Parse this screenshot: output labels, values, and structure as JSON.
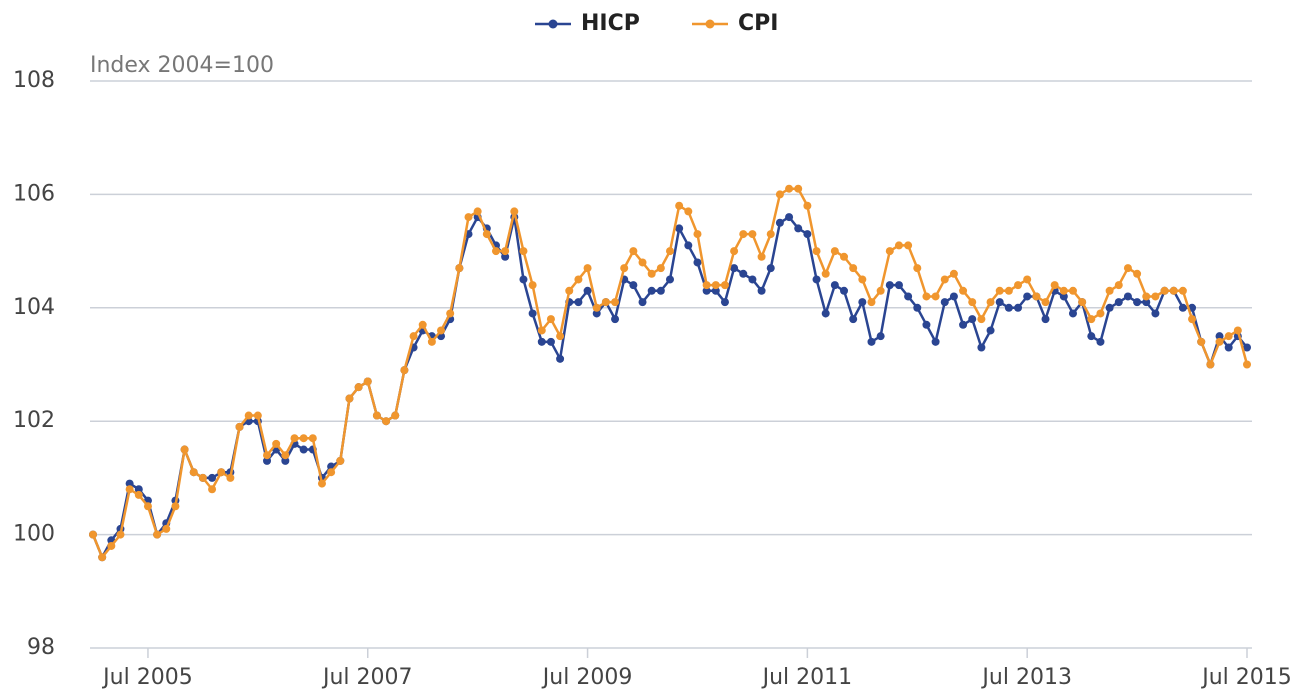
{
  "chart_data": {
    "type": "line",
    "y_label": "Index 2004=100",
    "categories": [
      null,
      null,
      null,
      null,
      null,
      null,
      "Jul 2005",
      null,
      null,
      null,
      null,
      null,
      null,
      null,
      null,
      null,
      null,
      null,
      null,
      null,
      null,
      null,
      null,
      null,
      null,
      null,
      null,
      null,
      null,
      null,
      "Jul 2007",
      null,
      null,
      null,
      null,
      null,
      null,
      null,
      null,
      null,
      null,
      null,
      null,
      null,
      null,
      null,
      null,
      null,
      null,
      null,
      null,
      null,
      null,
      null,
      "Jul 2009",
      null,
      null,
      null,
      null,
      null,
      null,
      null,
      null,
      null,
      null,
      null,
      null,
      null,
      null,
      null,
      null,
      null,
      null,
      null,
      null,
      null,
      null,
      null,
      "Jul 2011",
      null,
      null,
      null,
      null,
      null,
      null,
      null,
      null,
      null,
      null,
      null,
      null,
      null,
      null,
      null,
      null,
      null,
      null,
      null,
      null,
      null,
      null,
      null,
      "Jul 2013",
      null,
      null,
      null,
      null,
      null,
      null,
      null,
      null,
      null,
      null,
      null,
      null,
      null,
      null,
      null,
      null,
      null,
      null,
      null,
      null,
      null,
      null,
      null,
      "Jul 2015"
    ],
    "series": [
      {
        "name": "HICP",
        "color": "#2a4592",
        "values": [
          100.0,
          99.6,
          99.9,
          100.1,
          100.9,
          100.8,
          100.6,
          100.0,
          100.2,
          100.6,
          101.5,
          101.1,
          101.0,
          101.0,
          101.1,
          101.1,
          101.9,
          102.0,
          102.0,
          101.3,
          101.5,
          101.3,
          101.6,
          101.5,
          101.5,
          101.0,
          101.2,
          101.3,
          102.4,
          102.6,
          102.7,
          102.1,
          102.0,
          102.1,
          102.9,
          103.3,
          103.6,
          103.5,
          103.5,
          103.8,
          104.7,
          105.3,
          105.6,
          105.4,
          105.1,
          104.9,
          105.6,
          104.5,
          103.9,
          103.4,
          103.4,
          103.1,
          104.1,
          104.1,
          104.3,
          103.9,
          104.1,
          103.8,
          104.5,
          104.4,
          104.1,
          104.3,
          104.3,
          104.5,
          105.4,
          105.1,
          104.8,
          104.3,
          104.3,
          104.1,
          104.7,
          104.6,
          104.5,
          104.3,
          104.7,
          105.5,
          105.6,
          105.4,
          105.3,
          104.5,
          103.9,
          104.4,
          104.3,
          103.8,
          104.1,
          103.4,
          103.5,
          104.4,
          104.4,
          104.2,
          104.0,
          103.7,
          103.4,
          104.1,
          104.2,
          103.7,
          103.8,
          103.3,
          103.6,
          104.1,
          104.0,
          104.0,
          104.2,
          104.2,
          103.8,
          104.3,
          104.2,
          103.9,
          104.1,
          103.5,
          103.4,
          104.0,
          104.1,
          104.2,
          104.1,
          104.1,
          103.9,
          104.3,
          104.3,
          104.0,
          104.0,
          103.4,
          103.0,
          103.5,
          103.3,
          103.5,
          103.3
        ]
      },
      {
        "name": "CPI",
        "color": "#f0962e",
        "values": [
          100.0,
          99.6,
          99.8,
          100.0,
          100.8,
          100.7,
          100.5,
          100.0,
          100.1,
          100.5,
          101.5,
          101.1,
          101.0,
          100.8,
          101.1,
          101.0,
          101.9,
          102.1,
          102.1,
          101.4,
          101.6,
          101.4,
          101.7,
          101.7,
          101.7,
          100.9,
          101.1,
          101.3,
          102.4,
          102.6,
          102.7,
          102.1,
          102.0,
          102.1,
          102.9,
          103.5,
          103.7,
          103.4,
          103.6,
          103.9,
          104.7,
          105.6,
          105.7,
          105.3,
          105.0,
          105.0,
          105.7,
          105.0,
          104.4,
          103.6,
          103.8,
          103.5,
          104.3,
          104.5,
          104.7,
          104.0,
          104.1,
          104.1,
          104.7,
          105.0,
          104.8,
          104.6,
          104.7,
          105.0,
          105.8,
          105.7,
          105.3,
          104.4,
          104.4,
          104.4,
          105.0,
          105.3,
          105.3,
          104.9,
          105.3,
          106.0,
          106.1,
          106.1,
          105.8,
          105.0,
          104.6,
          105.0,
          104.9,
          104.7,
          104.5,
          104.1,
          104.3,
          105.0,
          105.1,
          105.1,
          104.7,
          104.2,
          104.2,
          104.5,
          104.6,
          104.3,
          104.1,
          103.8,
          104.1,
          104.3,
          104.3,
          104.4,
          104.5,
          104.2,
          104.1,
          104.4,
          104.3,
          104.3,
          104.1,
          103.8,
          103.9,
          104.3,
          104.4,
          104.7,
          104.6,
          104.2,
          104.2,
          104.3,
          104.3,
          104.3,
          103.8,
          103.4,
          103.0,
          103.4,
          103.5,
          103.6,
          103.0
        ]
      }
    ],
    "ylim": [
      98,
      108
    ],
    "yticks": [
      98,
      100,
      102,
      104,
      106,
      108
    ],
    "grid": true,
    "legend": "top"
  }
}
